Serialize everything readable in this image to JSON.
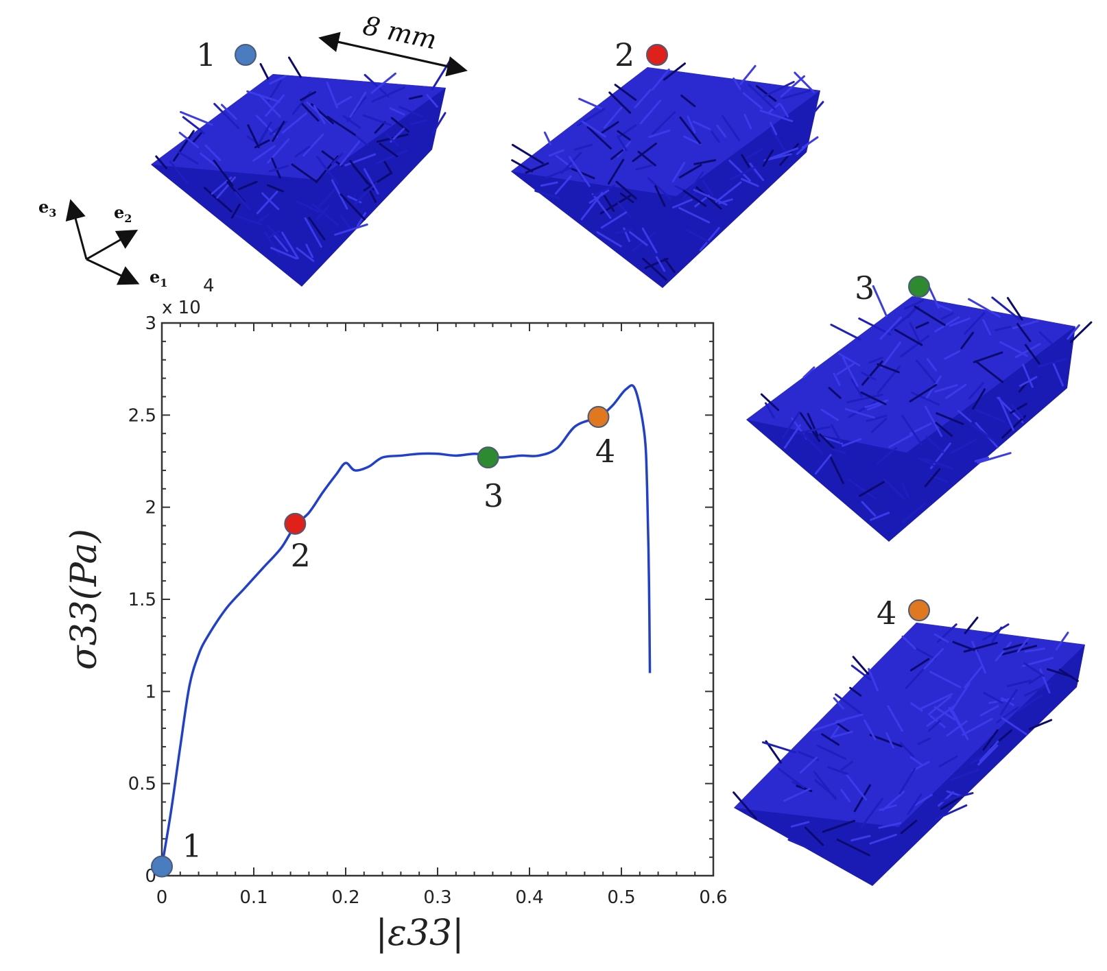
{
  "scale_bar": {
    "label": "8 mm"
  },
  "axes_triad": {
    "e1": "e",
    "e1_sub": "1",
    "e2": "e",
    "e2_sub": "2",
    "e3": "e",
    "e3_sub": "3"
  },
  "snapshots": [
    {
      "label": "1",
      "color": "#4a7cc0"
    },
    {
      "label": "2",
      "color": "#e0201a"
    },
    {
      "label": "3",
      "color": "#2e8a2e"
    },
    {
      "label": "4",
      "color": "#e07820"
    }
  ],
  "fiber_color": "#1f1fbf",
  "chart_data": {
    "type": "line",
    "xlabel": "|ε33|",
    "ylabel": "σ33(Pa)",
    "y_multiplier": "x 10",
    "y_multiplier_exp": "4",
    "xlim": [
      0,
      0.6
    ],
    "ylim": [
      0,
      3
    ],
    "x_ticks": [
      "0",
      "0.1",
      "0.2",
      "0.3",
      "0.4",
      "0.5",
      "0.6"
    ],
    "y_ticks": [
      "0",
      "0.5",
      "1",
      "1.5",
      "2",
      "2.5",
      "3"
    ],
    "grid": false,
    "series": [
      {
        "color": "#1f3fd0",
        "points": [
          [
            0,
            0.05
          ],
          [
            0.01,
            0.35
          ],
          [
            0.02,
            0.7
          ],
          [
            0.03,
            1.03
          ],
          [
            0.04,
            1.2
          ],
          [
            0.05,
            1.3
          ],
          [
            0.07,
            1.45
          ],
          [
            0.09,
            1.56
          ],
          [
            0.11,
            1.67
          ],
          [
            0.13,
            1.78
          ],
          [
            0.145,
            1.9
          ],
          [
            0.16,
            1.97
          ],
          [
            0.175,
            2.08
          ],
          [
            0.19,
            2.18
          ],
          [
            0.2,
            2.24
          ],
          [
            0.21,
            2.2
          ],
          [
            0.225,
            2.22
          ],
          [
            0.24,
            2.27
          ],
          [
            0.26,
            2.28
          ],
          [
            0.28,
            2.29
          ],
          [
            0.3,
            2.29
          ],
          [
            0.32,
            2.28
          ],
          [
            0.34,
            2.29
          ],
          [
            0.355,
            2.28
          ],
          [
            0.37,
            2.27
          ],
          [
            0.39,
            2.28
          ],
          [
            0.41,
            2.28
          ],
          [
            0.43,
            2.32
          ],
          [
            0.45,
            2.44
          ],
          [
            0.475,
            2.49
          ],
          [
            0.49,
            2.55
          ],
          [
            0.505,
            2.64
          ],
          [
            0.515,
            2.64
          ],
          [
            0.525,
            2.4
          ],
          [
            0.528,
            2.1
          ],
          [
            0.53,
            1.6
          ],
          [
            0.531,
            1.1
          ]
        ]
      }
    ],
    "markers": [
      {
        "label": "1",
        "x": 0.0,
        "y": 0.05,
        "color": "#4a7cc0"
      },
      {
        "label": "2",
        "x": 0.145,
        "y": 1.91,
        "color": "#e0201a"
      },
      {
        "label": "3",
        "x": 0.355,
        "y": 2.27,
        "color": "#2e8a2e"
      },
      {
        "label": "4",
        "x": 0.475,
        "y": 2.49,
        "color": "#e07820"
      }
    ]
  }
}
